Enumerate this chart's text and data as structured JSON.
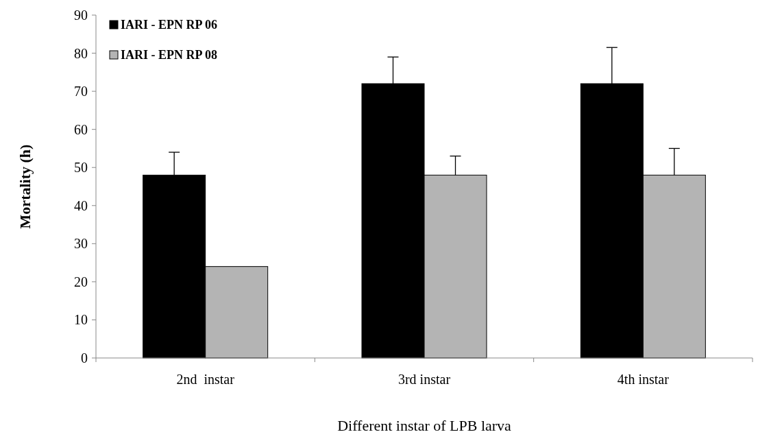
{
  "chart_data": {
    "type": "bar",
    "xlabel": "Different instar of LPB larva",
    "ylabel": "Mortality (h)",
    "categories": [
      "2nd  instar",
      "3rd instar",
      "4th instar"
    ],
    "series": [
      {
        "name": "IARI - EPN RP 06",
        "color": "#000000",
        "values": [
          48,
          72,
          72
        ],
        "errors": [
          [
            48,
            54
          ],
          [
            72,
            79
          ],
          [
            72,
            81.5
          ]
        ]
      },
      {
        "name": "IARI - EPN RP 08",
        "color": "#b4b4b4",
        "values": [
          24,
          48,
          48
        ],
        "errors": [
          null,
          [
            48,
            53
          ],
          [
            48,
            55
          ]
        ]
      }
    ],
    "ylim": [
      0,
      90
    ],
    "yticks": [
      0,
      10,
      20,
      30,
      40,
      50,
      60,
      70,
      80,
      90
    ],
    "grid": false,
    "legend": "top left"
  }
}
